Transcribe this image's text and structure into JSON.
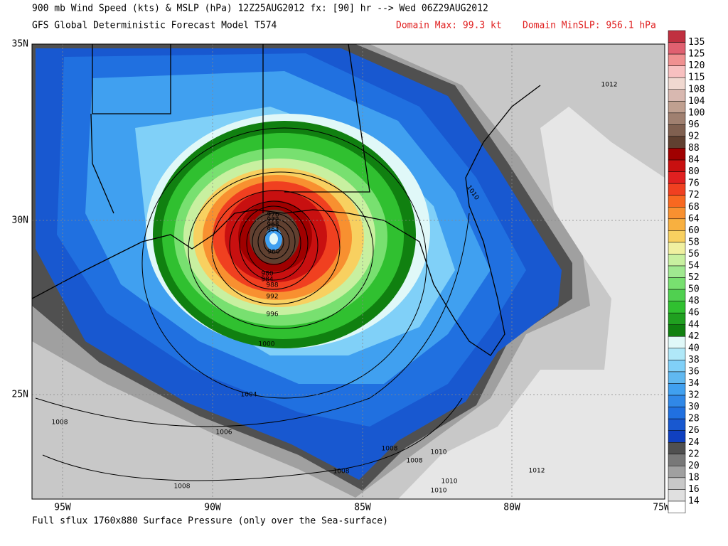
{
  "header": {
    "title": "900 mb Wind Speed (kts) & MSLP (hPa) 12Z25AUG2012 fx: [90] hr --> Wed 06Z29AUG2012",
    "model": "GFS Global Deterministic Forecast Model T574",
    "domain_max": "Domain Max:  99.3 kt",
    "domain_min_slp": "Domain MinSLP: 956.1 hPa"
  },
  "axes": {
    "lat_labels": [
      "35N",
      "30N",
      "25N"
    ],
    "lon_labels": [
      "95W",
      "90W",
      "85W",
      "80W",
      "75W"
    ]
  },
  "colorbar": {
    "labels": [
      "135",
      "125",
      "120",
      "115",
      "108",
      "104",
      "100",
      "96",
      "92",
      "88",
      "84",
      "80",
      "76",
      "72",
      "68",
      "64",
      "60",
      "58",
      "56",
      "54",
      "52",
      "50",
      "48",
      "46",
      "44",
      "42",
      "40",
      "38",
      "36",
      "34",
      "32",
      "30",
      "28",
      "26",
      "24",
      "22",
      "20",
      "18",
      "16",
      "14"
    ],
    "colors": [
      "#c03040",
      "#e06070",
      "#f09090",
      "#f8c0c0",
      "#f0d8d0",
      "#d8b8b0",
      "#c0a090",
      "#a08070",
      "#806050",
      "#604030",
      "#a00000",
      "#c81010",
      "#e02020",
      "#f04020",
      "#f86820",
      "#f89030",
      "#f8b040",
      "#f8d060",
      "#f0f0a0",
      "#c8f0a0",
      "#a0e890",
      "#78e070",
      "#50d050",
      "#30c030",
      "#20a020",
      "#108010",
      "#e0f8f8",
      "#b0e8f8",
      "#80d0f8",
      "#60b8f0",
      "#40a0f0",
      "#3088e8",
      "#2070e0",
      "#1858d0",
      "#1040c0",
      "#505050",
      "#787878",
      "#a0a0a0",
      "#c8c8c8",
      "#e0e0e0",
      "#ffffff"
    ]
  },
  "contour_labels": [
    "1012",
    "1010",
    "960",
    "964",
    "968",
    "972",
    "976",
    "980",
    "984",
    "988",
    "992",
    "996",
    "1000",
    "1004",
    "1006",
    "1008",
    "1008",
    "1008",
    "1008",
    "1008",
    "1010",
    "1010",
    "1010",
    "1012"
  ],
  "footer": "Full sflux 1760x880 Surface Pressure (only over the Sea-surface)"
}
